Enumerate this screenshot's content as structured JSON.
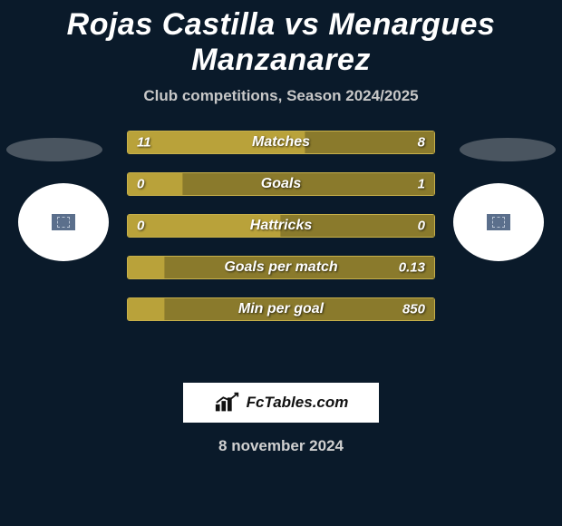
{
  "header": {
    "title": "Rojas Castilla vs Menargues Manzanarez",
    "subtitle": "Club competitions, Season 2024/2025"
  },
  "colors": {
    "left_fill": "#b9a23a",
    "right_fill": "#8a7a2c",
    "bar_border": "#c7b04a",
    "background": "#0a1a2a"
  },
  "stats": [
    {
      "label": "Matches",
      "left_val": "11",
      "right_val": "8",
      "left_pct": 58
    },
    {
      "label": "Goals",
      "left_val": "0",
      "right_val": "1",
      "left_pct": 18
    },
    {
      "label": "Hattricks",
      "left_val": "0",
      "right_val": "0",
      "left_pct": 50
    },
    {
      "label": "Goals per match",
      "left_val": "",
      "right_val": "0.13",
      "left_pct": 12
    },
    {
      "label": "Min per goal",
      "left_val": "",
      "right_val": "850",
      "left_pct": 12
    }
  ],
  "brand": {
    "label": "FcTables.com"
  },
  "footer": {
    "date": "8 november 2024"
  }
}
